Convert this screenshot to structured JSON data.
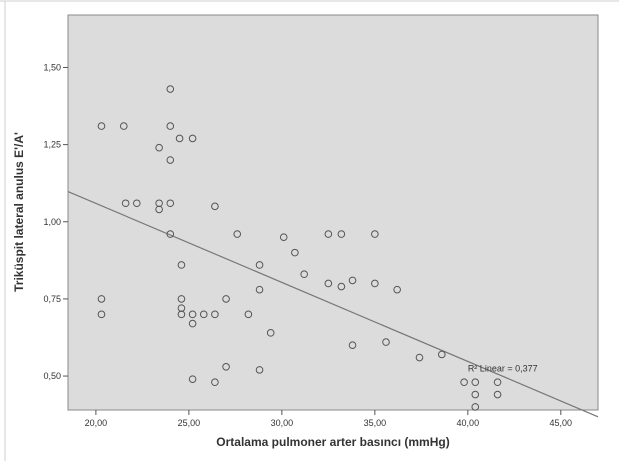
{
  "chart_data": {
    "type": "scatter",
    "title": "",
    "xlabel": "Ortalama pulmoner arter basıncı (mmHg)",
    "ylabel": "Triküspit lateral anulus E'/A'",
    "xlim": [
      18.5,
      47.0
    ],
    "ylim": [
      0.39,
      1.67
    ],
    "xticks": [
      "20,00",
      "25,00",
      "30,00",
      "35,00",
      "40,00",
      "45,00"
    ],
    "xtick_values": [
      20,
      25,
      30,
      35,
      40,
      45
    ],
    "yticks": [
      "0,50",
      "0,75",
      "1,00",
      "1,25",
      "1,50"
    ],
    "ytick_values": [
      0.5,
      0.75,
      1.0,
      1.25,
      1.5
    ],
    "grid": false,
    "legend": "none",
    "point_color": "#555555",
    "line_color": "#777777",
    "plot_bg": "#dcdcdc",
    "fit_line": {
      "label": "R² Linear = 0,377",
      "x": [
        18.5,
        47.0
      ],
      "y": [
        1.098,
        0.368
      ]
    },
    "points": [
      [
        20.3,
        1.31
      ],
      [
        21.5,
        1.31
      ],
      [
        24.0,
        1.43
      ],
      [
        24.0,
        1.31
      ],
      [
        24.5,
        1.27
      ],
      [
        25.2,
        1.27
      ],
      [
        23.4,
        1.24
      ],
      [
        24.0,
        1.2
      ],
      [
        21.6,
        1.06
      ],
      [
        22.2,
        1.06
      ],
      [
        23.4,
        1.06
      ],
      [
        24.0,
        1.06
      ],
      [
        23.4,
        1.04
      ],
      [
        26.4,
        1.05
      ],
      [
        24.0,
        0.96
      ],
      [
        27.6,
        0.96
      ],
      [
        30.1,
        0.95
      ],
      [
        32.5,
        0.96
      ],
      [
        33.2,
        0.96
      ],
      [
        35.0,
        0.96
      ],
      [
        30.7,
        0.9
      ],
      [
        24.6,
        0.86
      ],
      [
        28.8,
        0.86
      ],
      [
        31.2,
        0.83
      ],
      [
        32.5,
        0.8
      ],
      [
        33.2,
        0.79
      ],
      [
        33.8,
        0.81
      ],
      [
        35.0,
        0.8
      ],
      [
        36.2,
        0.78
      ],
      [
        28.8,
        0.78
      ],
      [
        20.3,
        0.75
      ],
      [
        24.6,
        0.75
      ],
      [
        27.0,
        0.75
      ],
      [
        24.6,
        0.72
      ],
      [
        24.6,
        0.7
      ],
      [
        25.8,
        0.7
      ],
      [
        26.4,
        0.7
      ],
      [
        28.2,
        0.7
      ],
      [
        20.3,
        0.7
      ],
      [
        25.2,
        0.7
      ],
      [
        25.2,
        0.67
      ],
      [
        29.4,
        0.64
      ],
      [
        33.8,
        0.6
      ],
      [
        35.6,
        0.61
      ],
      [
        37.4,
        0.56
      ],
      [
        38.6,
        0.57
      ],
      [
        27.0,
        0.53
      ],
      [
        28.8,
        0.52
      ],
      [
        25.2,
        0.49
      ],
      [
        26.4,
        0.48
      ],
      [
        39.8,
        0.48
      ],
      [
        40.4,
        0.48
      ],
      [
        41.6,
        0.48
      ],
      [
        40.4,
        0.44
      ],
      [
        41.6,
        0.44
      ],
      [
        40.4,
        0.4
      ]
    ]
  }
}
